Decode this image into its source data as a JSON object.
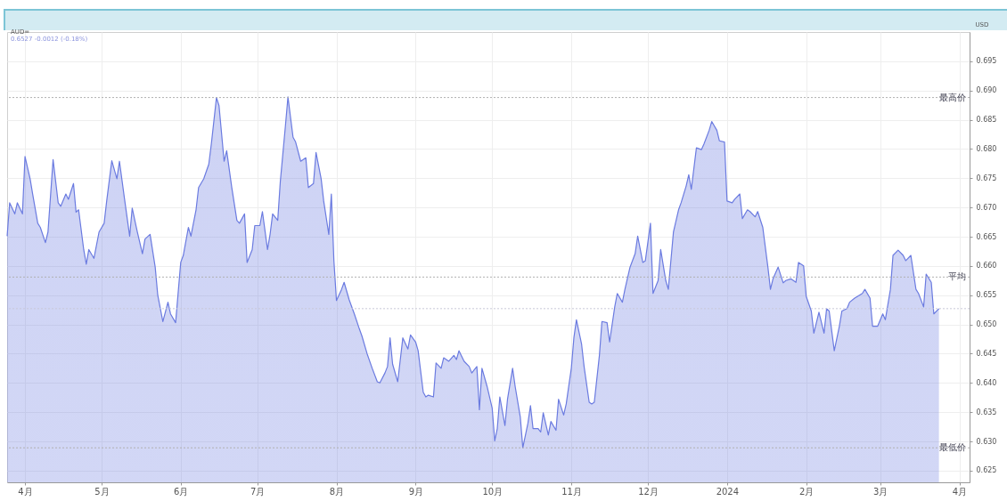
{
  "chart_data": {
    "type": "area",
    "title": "AUD=",
    "subtitle": "0.6527  -0.0012 (-0.18%)",
    "ylabel": "USD",
    "x": [
      "2023-03-25",
      "2023-03-26",
      "2023-03-28",
      "2023-03-29",
      "2023-03-31",
      "2023-04-01",
      "2023-04-03",
      "2023-04-04",
      "2023-04-06",
      "2023-04-07",
      "2023-04-09",
      "2023-04-10",
      "2023-04-12",
      "2023-04-14",
      "2023-04-15",
      "2023-04-17",
      "2023-04-18",
      "2023-04-20",
      "2023-04-21",
      "2023-04-22",
      "2023-04-24",
      "2023-04-25",
      "2023-04-26",
      "2023-04-28",
      "2023-04-30",
      "2023-05-02",
      "2023-05-03",
      "2023-05-05",
      "2023-05-07",
      "2023-05-08",
      "2023-05-10",
      "2023-05-12",
      "2023-05-13",
      "2023-05-15",
      "2023-05-17",
      "2023-05-18",
      "2023-05-20",
      "2023-05-22",
      "2023-05-23",
      "2023-05-25",
      "2023-05-27",
      "2023-05-28",
      "2023-05-30",
      "2023-06-01",
      "2023-06-02",
      "2023-06-04",
      "2023-06-05",
      "2023-06-07",
      "2023-06-08",
      "2023-06-10",
      "2023-06-12",
      "2023-06-13",
      "2023-06-15",
      "2023-06-16",
      "2023-06-18",
      "2023-06-19",
      "2023-06-21",
      "2023-06-23",
      "2023-06-24",
      "2023-06-26",
      "2023-06-27",
      "2023-06-29",
      "2023-06-30",
      "2023-07-02",
      "2023-07-03",
      "2023-07-05",
      "2023-07-06",
      "2023-07-07",
      "2023-07-09",
      "2023-07-10",
      "2023-07-12",
      "2023-07-13",
      "2023-07-15",
      "2023-07-16",
      "2023-07-18",
      "2023-07-20",
      "2023-07-21",
      "2023-07-23",
      "2023-07-24",
      "2023-07-26",
      "2023-07-27",
      "2023-07-29",
      "2023-07-30",
      "2023-07-31",
      "2023-08-01",
      "2023-08-03",
      "2023-08-04",
      "2023-08-06",
      "2023-08-08",
      "2023-08-10",
      "2023-08-11",
      "2023-08-13",
      "2023-08-15",
      "2023-08-17",
      "2023-08-18",
      "2023-08-20",
      "2023-08-21",
      "2023-08-22",
      "2023-08-23",
      "2023-08-25",
      "2023-08-27",
      "2023-08-29",
      "2023-08-30",
      "2023-09-01",
      "2023-09-02",
      "2023-09-04",
      "2023-09-05",
      "2023-09-06",
      "2023-09-08",
      "2023-09-09",
      "2023-09-11",
      "2023-09-12",
      "2023-09-14",
      "2023-09-16",
      "2023-09-17",
      "2023-09-18",
      "2023-09-20",
      "2023-09-22",
      "2023-09-23",
      "2023-09-25",
      "2023-09-26",
      "2023-09-27",
      "2023-09-29",
      "2023-10-01",
      "2023-10-02",
      "2023-10-03",
      "2023-10-04",
      "2023-10-06",
      "2023-10-07",
      "2023-10-09",
      "2023-10-10",
      "2023-10-12",
      "2023-10-13",
      "2023-10-15",
      "2023-10-16",
      "2023-10-17",
      "2023-10-19",
      "2023-10-20",
      "2023-10-21",
      "2023-10-23",
      "2023-10-24",
      "2023-10-26",
      "2023-10-27",
      "2023-10-29",
      "2023-10-30",
      "2023-11-01",
      "2023-11-02",
      "2023-11-03",
      "2023-11-05",
      "2023-11-06",
      "2023-11-08",
      "2023-11-09",
      "2023-11-10",
      "2023-11-12",
      "2023-11-13",
      "2023-11-15",
      "2023-11-16",
      "2023-11-18",
      "2023-11-19",
      "2023-11-21",
      "2023-11-22",
      "2023-11-24",
      "2023-11-26",
      "2023-11-27",
      "2023-11-29",
      "2023-11-30",
      "2023-12-02",
      "2023-12-03",
      "2023-12-05",
      "2023-12-06",
      "2023-12-08",
      "2023-12-09",
      "2023-12-11",
      "2023-12-13",
      "2023-12-14",
      "2023-12-16",
      "2023-12-17",
      "2023-12-18",
      "2023-12-20",
      "2023-12-22",
      "2023-12-23",
      "2023-12-25",
      "2023-12-26",
      "2023-12-28",
      "2023-12-29",
      "2023-12-31",
      "2024-01-01",
      "2024-01-03",
      "2024-01-04",
      "2024-01-06",
      "2024-01-07",
      "2024-01-09",
      "2024-01-10",
      "2024-01-12",
      "2024-01-13",
      "2024-01-15",
      "2024-01-17",
      "2024-01-18",
      "2024-01-19",
      "2024-01-21",
      "2024-01-23",
      "2024-01-24",
      "2024-01-26",
      "2024-01-28",
      "2024-01-29",
      "2024-01-31",
      "2024-02-01",
      "2024-02-03",
      "2024-02-04",
      "2024-02-06",
      "2024-02-08",
      "2024-02-09",
      "2024-02-10",
      "2024-02-12",
      "2024-02-14",
      "2024-02-15",
      "2024-02-17",
      "2024-02-18",
      "2024-02-20",
      "2024-02-23",
      "2024-02-24",
      "2024-02-26",
      "2024-02-27",
      "2024-02-29",
      "2024-03-02",
      "2024-03-03",
      "2024-03-05",
      "2024-03-06",
      "2024-03-08",
      "2024-03-10",
      "2024-03-11",
      "2024-03-13",
      "2024-03-15",
      "2024-03-16",
      "2024-03-18",
      "2024-03-19",
      "2024-03-21",
      "2024-03-22",
      "2024-03-24"
    ],
    "series": [
      {
        "color": "#6b7be0",
        "values": [
          0.6651,
          0.6708,
          0.6689,
          0.6708,
          0.6689,
          0.6787,
          0.6749,
          0.6723,
          0.6673,
          0.6666,
          0.664,
          0.6658,
          0.6782,
          0.6708,
          0.6702,
          0.6723,
          0.6714,
          0.6741,
          0.6692,
          0.6696,
          0.6628,
          0.6603,
          0.6628,
          0.6613,
          0.6658,
          0.6673,
          0.6711,
          0.678,
          0.6749,
          0.6779,
          0.6714,
          0.6651,
          0.6699,
          0.6658,
          0.6621,
          0.6646,
          0.6654,
          0.6598,
          0.655,
          0.6505,
          0.6538,
          0.6518,
          0.6503,
          0.6606,
          0.6618,
          0.6666,
          0.6651,
          0.6696,
          0.6734,
          0.6749,
          0.6774,
          0.6809,
          0.6888,
          0.6874,
          0.6779,
          0.6797,
          0.6734,
          0.6678,
          0.6673,
          0.6689,
          0.6606,
          0.6628,
          0.6669,
          0.6669,
          0.6693,
          0.6628,
          0.6654,
          0.6689,
          0.6678,
          0.6744,
          0.6839,
          0.6889,
          0.682,
          0.6812,
          0.6779,
          0.6785,
          0.6734,
          0.6741,
          0.6794,
          0.6749,
          0.6711,
          0.6654,
          0.6723,
          0.6609,
          0.6541,
          0.656,
          0.6572,
          0.6542,
          0.6518,
          0.6492,
          0.648,
          0.645,
          0.6425,
          0.6402,
          0.64,
          0.6417,
          0.6428,
          0.6477,
          0.6432,
          0.6402,
          0.6477,
          0.6458,
          0.6482,
          0.647,
          0.6455,
          0.6384,
          0.6376,
          0.6379,
          0.6376,
          0.6434,
          0.6425,
          0.6443,
          0.6437,
          0.6447,
          0.644,
          0.6455,
          0.6437,
          0.6428,
          0.6417,
          0.6428,
          0.6354,
          0.6425,
          0.6394,
          0.6357,
          0.6301,
          0.6322,
          0.6376,
          0.6327,
          0.6372,
          0.6425,
          0.6394,
          0.6342,
          0.6289,
          0.6331,
          0.6361,
          0.6322,
          0.6322,
          0.6316,
          0.6349,
          0.6311,
          0.6334,
          0.6319,
          0.6372,
          0.6345,
          0.6364,
          0.6425,
          0.6477,
          0.6508,
          0.6467,
          0.6428,
          0.6367,
          0.6364,
          0.6367,
          0.6447,
          0.6505,
          0.6503,
          0.647,
          0.653,
          0.6553,
          0.6538,
          0.656,
          0.6598,
          0.6621,
          0.6651,
          0.6606,
          0.6609,
          0.6673,
          0.6553,
          0.6575,
          0.6628,
          0.6575,
          0.656,
          0.6658,
          0.6696,
          0.6708,
          0.6737,
          0.6756,
          0.6731,
          0.6802,
          0.6799,
          0.6809,
          0.6832,
          0.6847,
          0.6832,
          0.6814,
          0.6812,
          0.6711,
          0.6708,
          0.6714,
          0.6723,
          0.6681,
          0.6696,
          0.6693,
          0.6684,
          0.6693,
          0.6666,
          0.6598,
          0.656,
          0.6578,
          0.6598,
          0.6571,
          0.6575,
          0.6578,
          0.6572,
          0.6606,
          0.66,
          0.6548,
          0.6523,
          0.6485,
          0.6521,
          0.6485,
          0.6527,
          0.6523,
          0.6455,
          0.6497,
          0.6523,
          0.6527,
          0.6538,
          0.6545,
          0.6553,
          0.656,
          0.6545,
          0.6497,
          0.6497,
          0.6518,
          0.6508,
          0.656,
          0.6618,
          0.6627,
          0.6618,
          0.6609,
          0.6618,
          0.656,
          0.6553,
          0.653,
          0.6586,
          0.6572,
          0.6518,
          0.6527
        ]
      }
    ],
    "xlim": [
      "2023-03-25",
      "2024-04-05"
    ],
    "xticks": [
      {
        "value": "2023-04-01",
        "label": "4月"
      },
      {
        "value": "2023-05-01",
        "label": "5月"
      },
      {
        "value": "2023-06-01",
        "label": "6月"
      },
      {
        "value": "2023-07-01",
        "label": "7月"
      },
      {
        "value": "2023-08-01",
        "label": "8月"
      },
      {
        "value": "2023-09-01",
        "label": "9月"
      },
      {
        "value": "2023-10-01",
        "label": "10月"
      },
      {
        "value": "2023-11-01",
        "label": "11月"
      },
      {
        "value": "2023-12-01",
        "label": "12月"
      },
      {
        "value": "2024-01-01",
        "label": "2024"
      },
      {
        "value": "2024-02-01",
        "label": "2月"
      },
      {
        "value": "2024-03-01",
        "label": "3月"
      },
      {
        "value": "2024-04-01",
        "label": "4月"
      }
    ],
    "ylim": [
      0.623,
      0.7
    ],
    "yticks": [
      0.625,
      {
        "value": 0.63,
        "label": "0.630"
      },
      0.635,
      {
        "value": 0.64,
        "label": "0.640"
      },
      0.645,
      {
        "value": 0.65,
        "label": "0.650"
      },
      0.655,
      {
        "value": 0.66,
        "label": "0.660"
      },
      0.665,
      {
        "value": 0.67,
        "label": "0.670"
      },
      0.675,
      {
        "value": 0.68,
        "label": "0.680"
      },
      0.685,
      {
        "value": 0.69,
        "label": "0.690"
      },
      0.695
    ],
    "ref_lines": [
      {
        "axis": "y",
        "value": 0.6888,
        "label": "最高价",
        "color": "#b0b0b0",
        "line_style": "dotted"
      },
      {
        "axis": "y",
        "value": 0.6581,
        "label": "平均",
        "color": "#b0b0b0",
        "line_style": "dotted"
      },
      {
        "axis": "y",
        "value": 0.6289,
        "label": "最低价",
        "color": "#b0b0b0",
        "line_style": "dotted"
      },
      {
        "axis": "y",
        "value": 0.6527,
        "label": null,
        "color": "#c8c8d8",
        "line_style": "dotted"
      }
    ],
    "grid": true
  }
}
